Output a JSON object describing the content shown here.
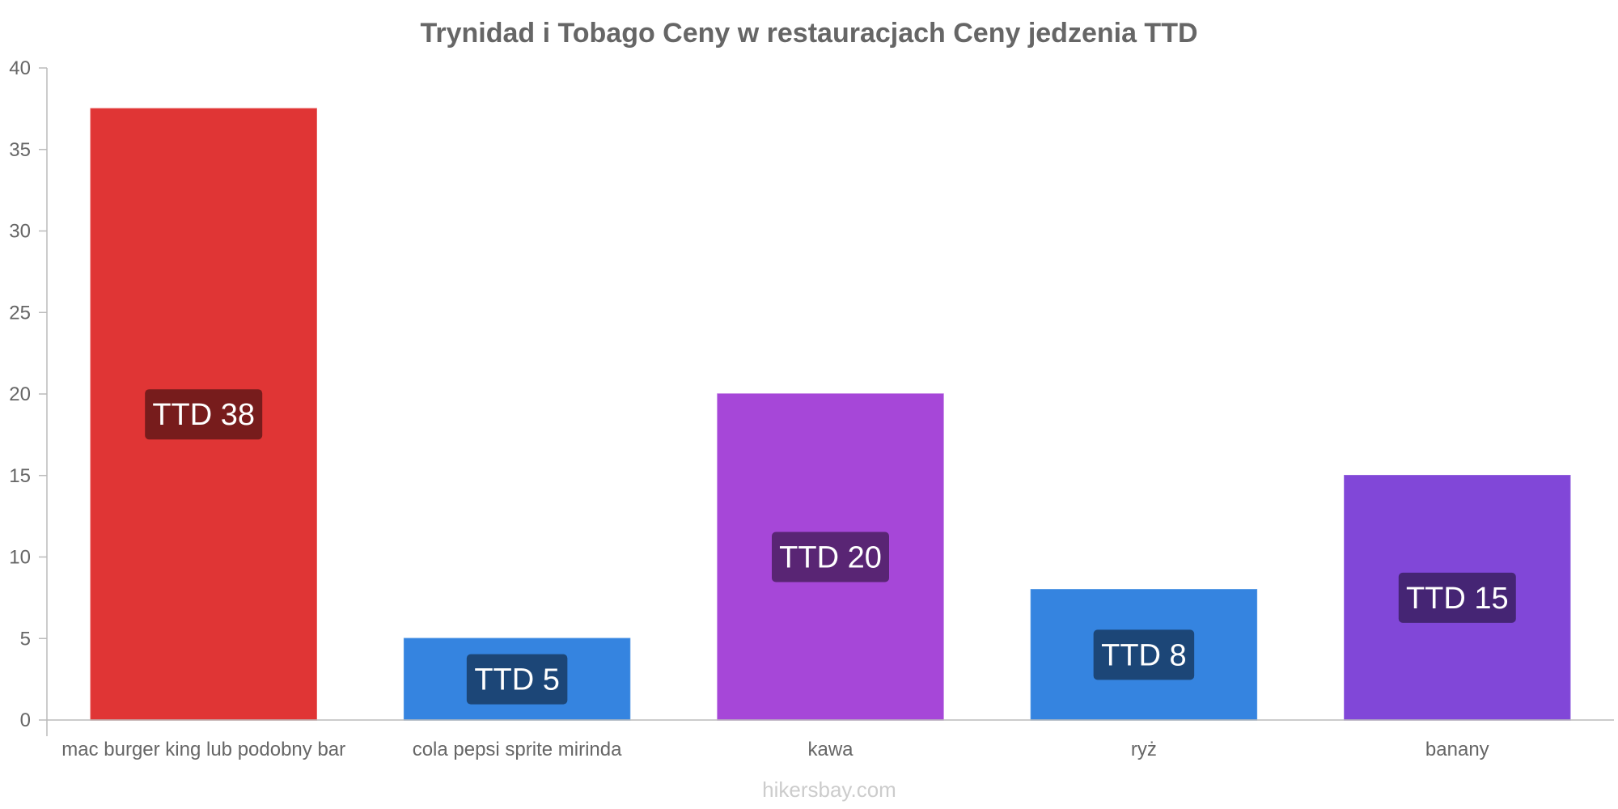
{
  "chart_data": {
    "type": "bar",
    "title": "Trynidad i Tobago Ceny w restauracjach Ceny jedzenia TTD",
    "categories": [
      "mac burger king lub podobny bar",
      "cola pepsi sprite mirinda",
      "kawa",
      "ryż",
      "banany"
    ],
    "values": [
      37.5,
      5,
      20,
      8,
      15
    ],
    "data_labels": [
      "TTD 38",
      "TTD 5",
      "TTD 20",
      "TTD 8",
      "TTD 15"
    ],
    "bar_colors": [
      "#e03535",
      "#3584e0",
      "#a647d8",
      "#3584e0",
      "#8147d8"
    ],
    "label_colors": [
      "#6e1a1a",
      "#1a416e",
      "#53236b",
      "#1a416e",
      "#40236b"
    ],
    "ylim": [
      0,
      40
    ],
    "yticks": [
      0,
      5,
      10,
      15,
      20,
      25,
      30,
      35,
      40
    ],
    "xlabel": "",
    "ylabel": "",
    "grid": false,
    "legend": "none"
  },
  "credit": "hikersbay.com"
}
